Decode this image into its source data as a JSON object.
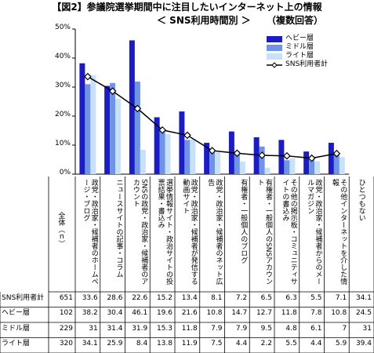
{
  "chart_data": {
    "type": "bar",
    "title": "【図2】参議院選挙期間中に注目したいインターネット上の情報",
    "subtitle": "＜ SNS利用時間別 ＞",
    "note": "（複数回答）",
    "categories": [
      "政党・政治家・候補者のホームページ・ブログ",
      "ニュースサイトの記事・コラム",
      "SNSの政党・政治家・候補者のアカウント",
      "選挙情報サイト・政治サイトの投票結果・書込み",
      "政党・政治家・候補者が発信する動画サイト",
      "政党・政治家・候補者のネット広告",
      "有権者・一般個人のブログ",
      "有権者・一般個人のSNSアカウント",
      "その他の掲示板・コミュニティサイトの書込み",
      "政党・政治家・候補者からのメールマガジン",
      "その他インターネットを介した情報"
    ],
    "series": [
      {
        "name": "ヘビー層",
        "color": "#1c1cc4",
        "values": [
          38.2,
          30.4,
          46.1,
          19.6,
          21.6,
          10.8,
          14.7,
          12.7,
          11.8,
          7.8,
          10.8
        ]
      },
      {
        "name": "ミドル層",
        "color": "#6f93e6",
        "values": [
          31.0,
          31.4,
          31.9,
          15.3,
          11.8,
          7.9,
          7.9,
          9.5,
          4.8,
          6.1,
          7.0
        ]
      },
      {
        "name": "ライト層",
        "color": "#c9e1f8",
        "values": [
          34.1,
          25.9,
          8.4,
          13.8,
          11.9,
          7.5,
          4.4,
          2.2,
          5.5,
          4.4,
          5.9
        ]
      },
      {
        "name": "SNS利用者計",
        "color": "#000000",
        "type": "line",
        "values": [
          33.6,
          28.6,
          22.6,
          15.2,
          13.4,
          8.1,
          7.2,
          6.5,
          6.3,
          5.5,
          7.1
        ]
      }
    ],
    "ylim": [
      0,
      50
    ],
    "yticks": [
      {
        "value": 0,
        "label": "0%"
      },
      {
        "value": 10,
        "label": "10%"
      },
      {
        "value": 20,
        "label": "20%"
      },
      {
        "value": 30,
        "label": "30%"
      },
      {
        "value": 40,
        "label": "40%"
      },
      {
        "value": 50,
        "label": "50%"
      }
    ],
    "grid": false,
    "legend": "top-right"
  },
  "table": {
    "total_header": "全体（ｎ）",
    "extra_header": "ひとつもない",
    "n": [
      651,
      102,
      229,
      320
    ],
    "extra": [
      34.1,
      24.5,
      31.0,
      39.4
    ]
  }
}
